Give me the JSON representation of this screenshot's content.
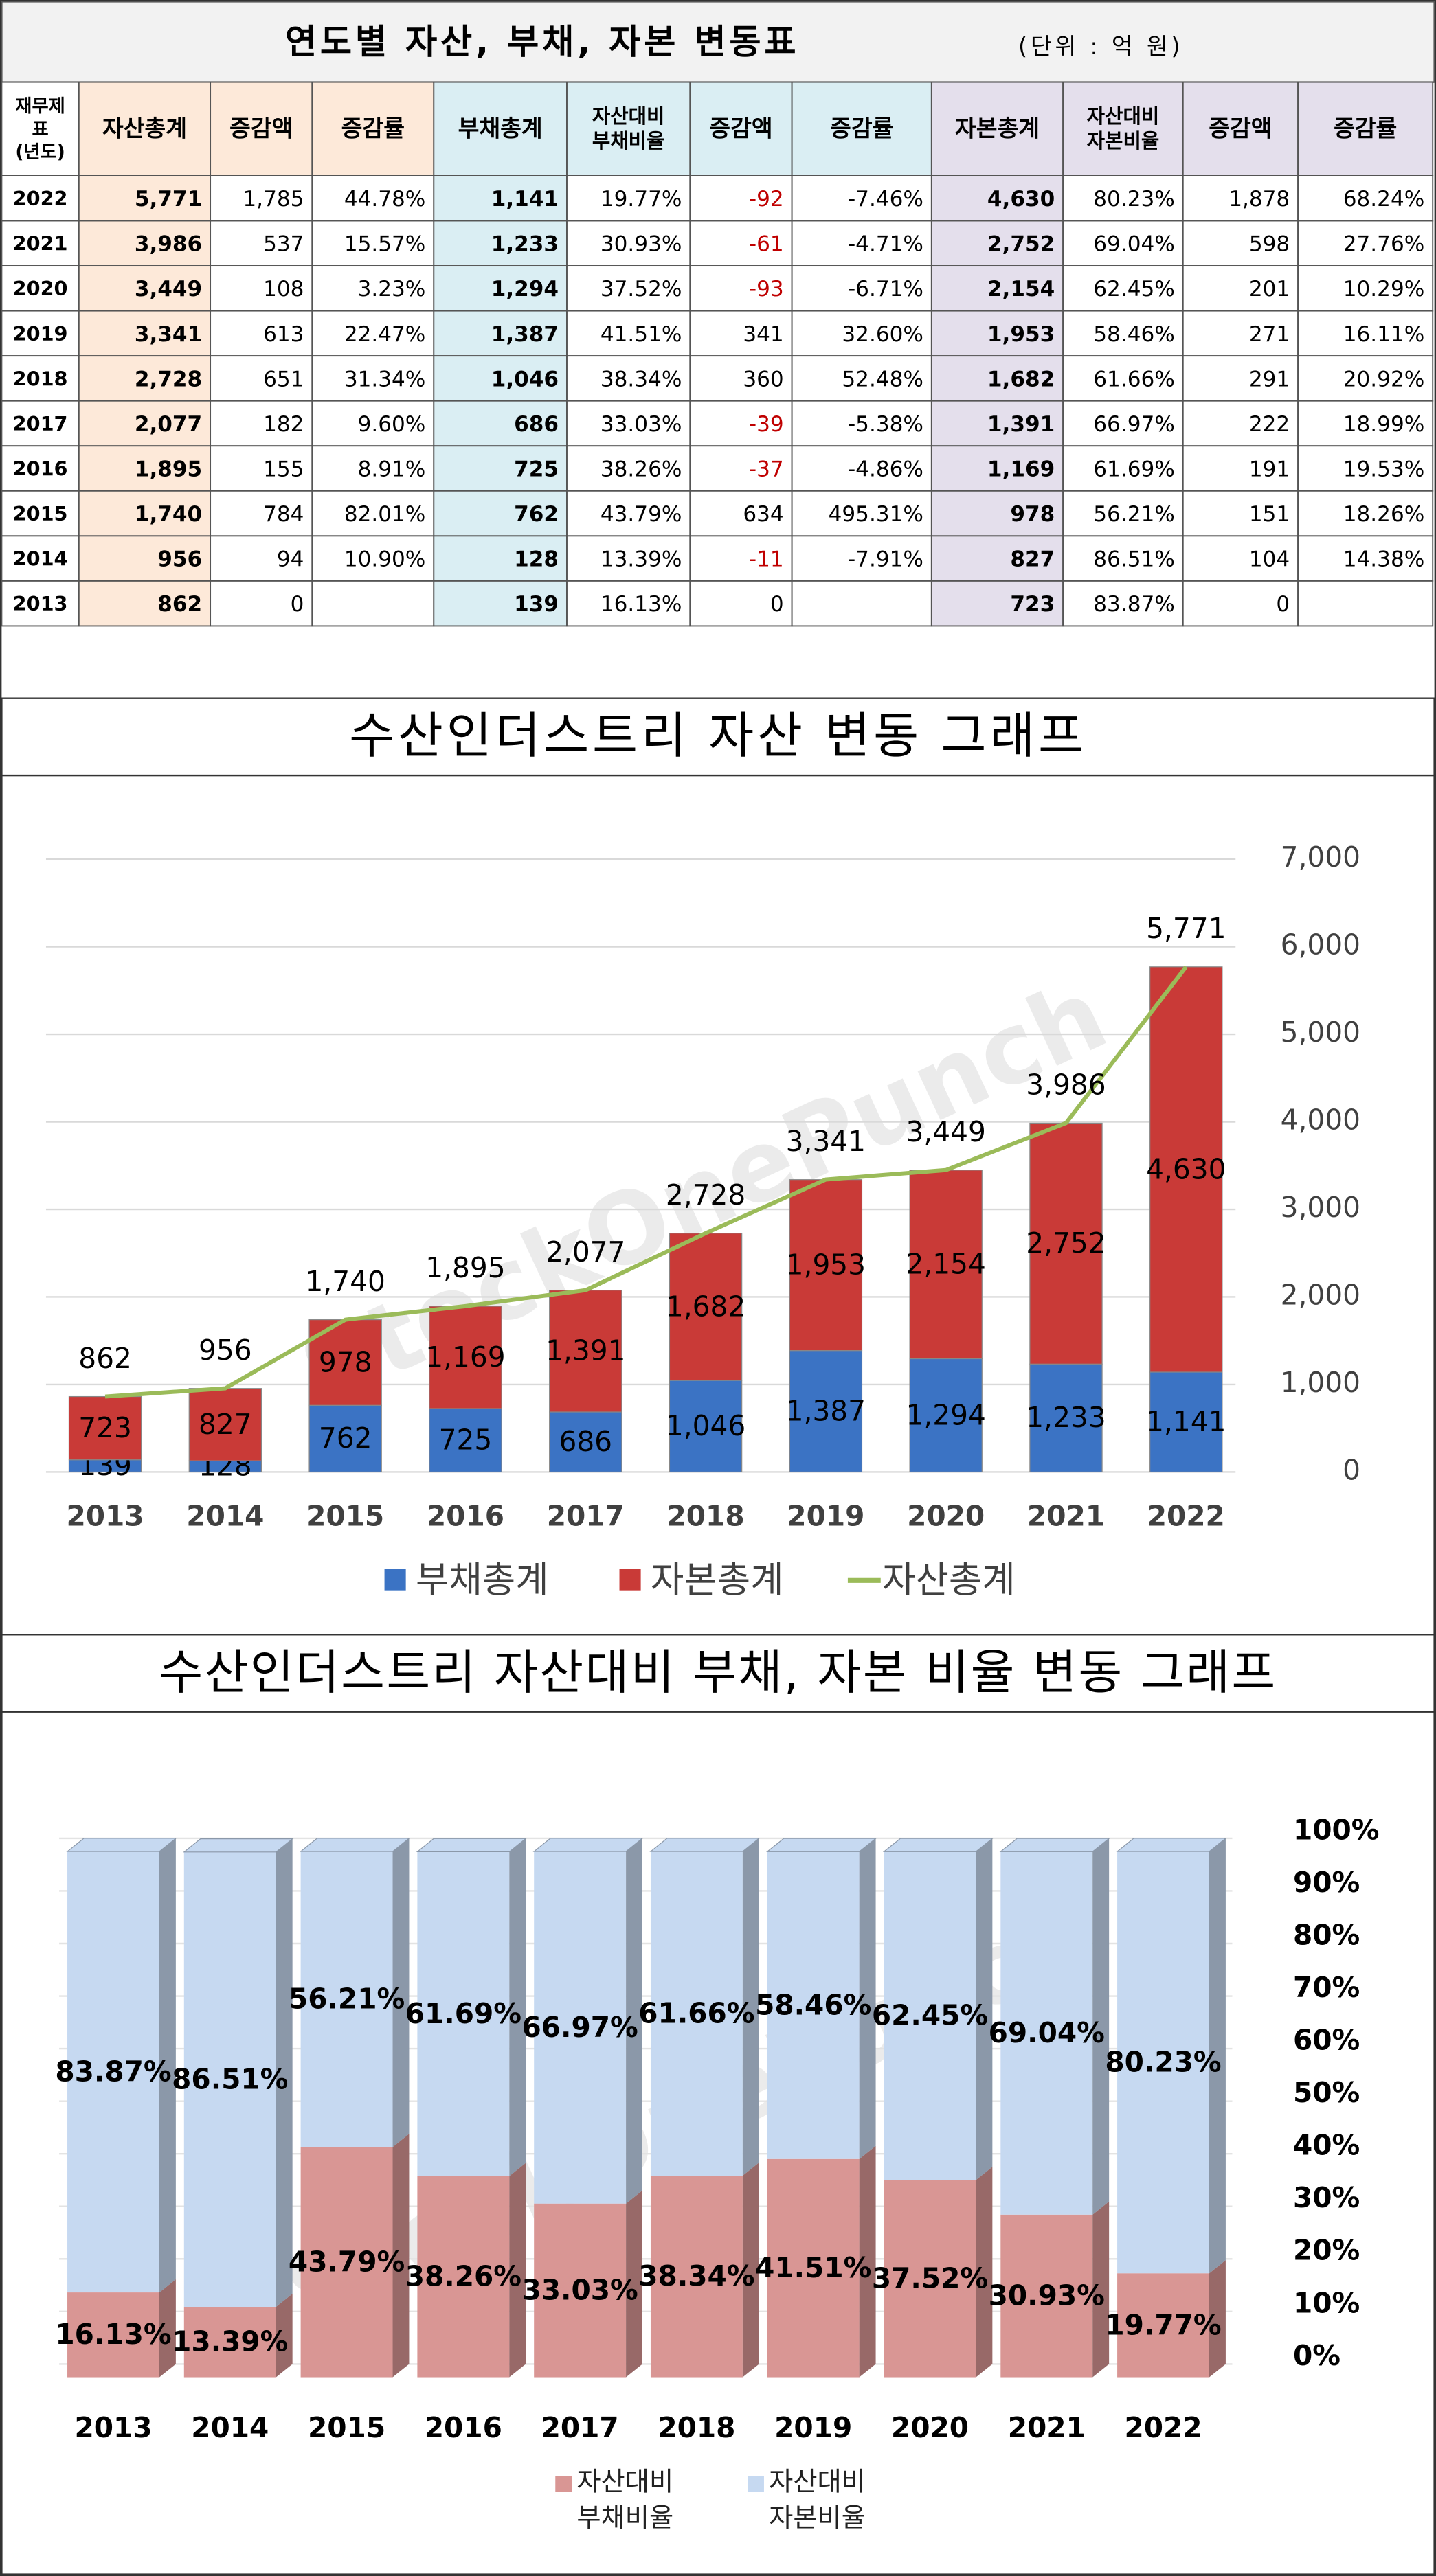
{
  "table": {
    "title": "연도별 자산, 부채, 자본 변동표",
    "unit": "(단위 : 억 원)",
    "headers": [
      [
        "재무제",
        "표",
        "(년도)"
      ],
      [
        "자산총계"
      ],
      [
        "증감액"
      ],
      [
        "증감률"
      ],
      [
        "부채총계"
      ],
      [
        "자산대비",
        "부채비율"
      ],
      [
        "증감액"
      ],
      [
        "증감률"
      ],
      [
        "자본총계"
      ],
      [
        "자산대비",
        "자본비율"
      ],
      [
        "증감액"
      ],
      [
        "증감률"
      ]
    ],
    "rows": [
      [
        "2022",
        "5,771",
        "1,785",
        "44.78%",
        "1,141",
        "19.77%",
        "-92",
        "-7.46%",
        "4,630",
        "80.23%",
        "1,878",
        "68.24%"
      ],
      [
        "2021",
        "3,986",
        "537",
        "15.57%",
        "1,233",
        "30.93%",
        "-61",
        "-4.71%",
        "2,752",
        "69.04%",
        "598",
        "27.76%"
      ],
      [
        "2020",
        "3,449",
        "108",
        "3.23%",
        "1,294",
        "37.52%",
        "-93",
        "-6.71%",
        "2,154",
        "62.45%",
        "201",
        "10.29%"
      ],
      [
        "2019",
        "3,341",
        "613",
        "22.47%",
        "1,387",
        "41.51%",
        "341",
        "32.60%",
        "1,953",
        "58.46%",
        "271",
        "16.11%"
      ],
      [
        "2018",
        "2,728",
        "651",
        "31.34%",
        "1,046",
        "38.34%",
        "360",
        "52.48%",
        "1,682",
        "61.66%",
        "291",
        "20.92%"
      ],
      [
        "2017",
        "2,077",
        "182",
        "9.60%",
        "686",
        "33.03%",
        "-39",
        "-5.38%",
        "1,391",
        "66.97%",
        "222",
        "18.99%"
      ],
      [
        "2016",
        "1,895",
        "155",
        "8.91%",
        "725",
        "38.26%",
        "-37",
        "-4.86%",
        "1,169",
        "61.69%",
        "191",
        "19.53%"
      ],
      [
        "2015",
        "1,740",
        "784",
        "82.01%",
        "762",
        "43.79%",
        "634",
        "495.31%",
        "978",
        "56.21%",
        "151",
        "18.26%"
      ],
      [
        "2014",
        "956",
        "94",
        "10.90%",
        "128",
        "13.39%",
        "-11",
        "-7.91%",
        "827",
        "86.51%",
        "104",
        "14.38%"
      ],
      [
        "2013",
        "862",
        "0",
        null,
        "139",
        "16.13%",
        "0",
        null,
        "723",
        "83.87%",
        "0",
        null
      ]
    ],
    "negative_color": "#c00000"
  },
  "watermark": "StockOnePunch",
  "chart_data": [
    {
      "type": "stacked_bar_line",
      "title": "수산인더스트리 자산 변동 그래프",
      "categories": [
        "2013",
        "2014",
        "2015",
        "2016",
        "2017",
        "2018",
        "2019",
        "2020",
        "2021",
        "2022"
      ],
      "series": [
        {
          "name": "부채총계",
          "color": "#3b73c4",
          "values": [
            139,
            128,
            762,
            725,
            686,
            1046,
            1387,
            1294,
            1233,
            1141
          ],
          "value_labels": [
            "139",
            "128",
            "762",
            "725",
            "686",
            "1,046",
            "1,387",
            "1,294",
            "1,233",
            "1,141"
          ]
        },
        {
          "name": "자본총계",
          "color": "#c93a37",
          "values": [
            723,
            827,
            978,
            1169,
            1391,
            1682,
            1953,
            2154,
            2752,
            4630
          ],
          "value_labels": [
            "723",
            "827",
            "978",
            "1,169",
            "1,391",
            "1,682",
            "1,953",
            "2,154",
            "2,752",
            "4,630"
          ]
        },
        {
          "name": "자산총계",
          "type": "line",
          "color": "#9bbb59",
          "values": [
            862,
            956,
            1740,
            1895,
            2077,
            2728,
            3341,
            3449,
            3986,
            5771
          ],
          "value_labels": [
            "862",
            "956",
            "1,740",
            "1,895",
            "2,077",
            "2,728",
            "3,341",
            "3,449",
            "3,986",
            "5,771"
          ]
        }
      ],
      "ylim": [
        0,
        7000
      ],
      "yticks": [
        0,
        {
          "value": 1000,
          "label": "1,000"
        },
        {
          "value": 2000,
          "label": "2,000"
        },
        {
          "value": 3000,
          "label": "3,000"
        },
        {
          "value": 4000,
          "label": "4,000"
        },
        {
          "value": 5000,
          "label": "5,000"
        },
        {
          "value": 6000,
          "label": "6,000"
        },
        {
          "value": 7000,
          "label": "7,000"
        }
      ],
      "grid": true,
      "legend": "bottom"
    },
    {
      "type": "stacked_bar_3d",
      "title": "수산인더스트리 자산대비 부채, 자본 비율 변동 그래프",
      "categories": [
        "2013",
        "2014",
        "2015",
        "2016",
        "2017",
        "2018",
        "2019",
        "2020",
        "2021",
        "2022"
      ],
      "series": [
        {
          "name": "자산대비 부채비율",
          "color": "#d99694",
          "values": [
            16.13,
            13.39,
            43.79,
            38.26,
            33.03,
            38.34,
            41.51,
            37.52,
            30.93,
            19.77
          ],
          "value_labels": [
            "16.13%",
            "13.39%",
            "43.79%",
            "38.26%",
            "33.03%",
            "38.34%",
            "41.51%",
            "37.52%",
            "30.93%",
            "19.77%"
          ]
        },
        {
          "name": "자산대비 자본비율",
          "color": "#c6d9f1",
          "values": [
            83.87,
            86.51,
            56.21,
            61.69,
            66.97,
            61.66,
            58.46,
            62.45,
            69.04,
            80.23
          ],
          "value_labels": [
            "83.87%",
            "86.51%",
            "56.21%",
            "61.69%",
            "66.97%",
            "61.66%",
            "58.46%",
            "62.45%",
            "69.04%",
            "80.23%"
          ]
        }
      ],
      "ylim": [
        0,
        100
      ],
      "yticks": [
        {
          "value": 0,
          "label": "0%"
        },
        {
          "value": 10,
          "label": "10%"
        },
        {
          "value": 20,
          "label": "20%"
        },
        {
          "value": 30,
          "label": "30%"
        },
        {
          "value": 40,
          "label": "40%"
        },
        {
          "value": 50,
          "label": "50%"
        },
        {
          "value": 60,
          "label": "60%"
        },
        {
          "value": 70,
          "label": "70%"
        },
        {
          "value": 80,
          "label": "80%"
        },
        {
          "value": 90,
          "label": "90%"
        },
        {
          "value": 100,
          "label": "100%"
        }
      ],
      "grid": true,
      "legend": "bottom"
    }
  ]
}
